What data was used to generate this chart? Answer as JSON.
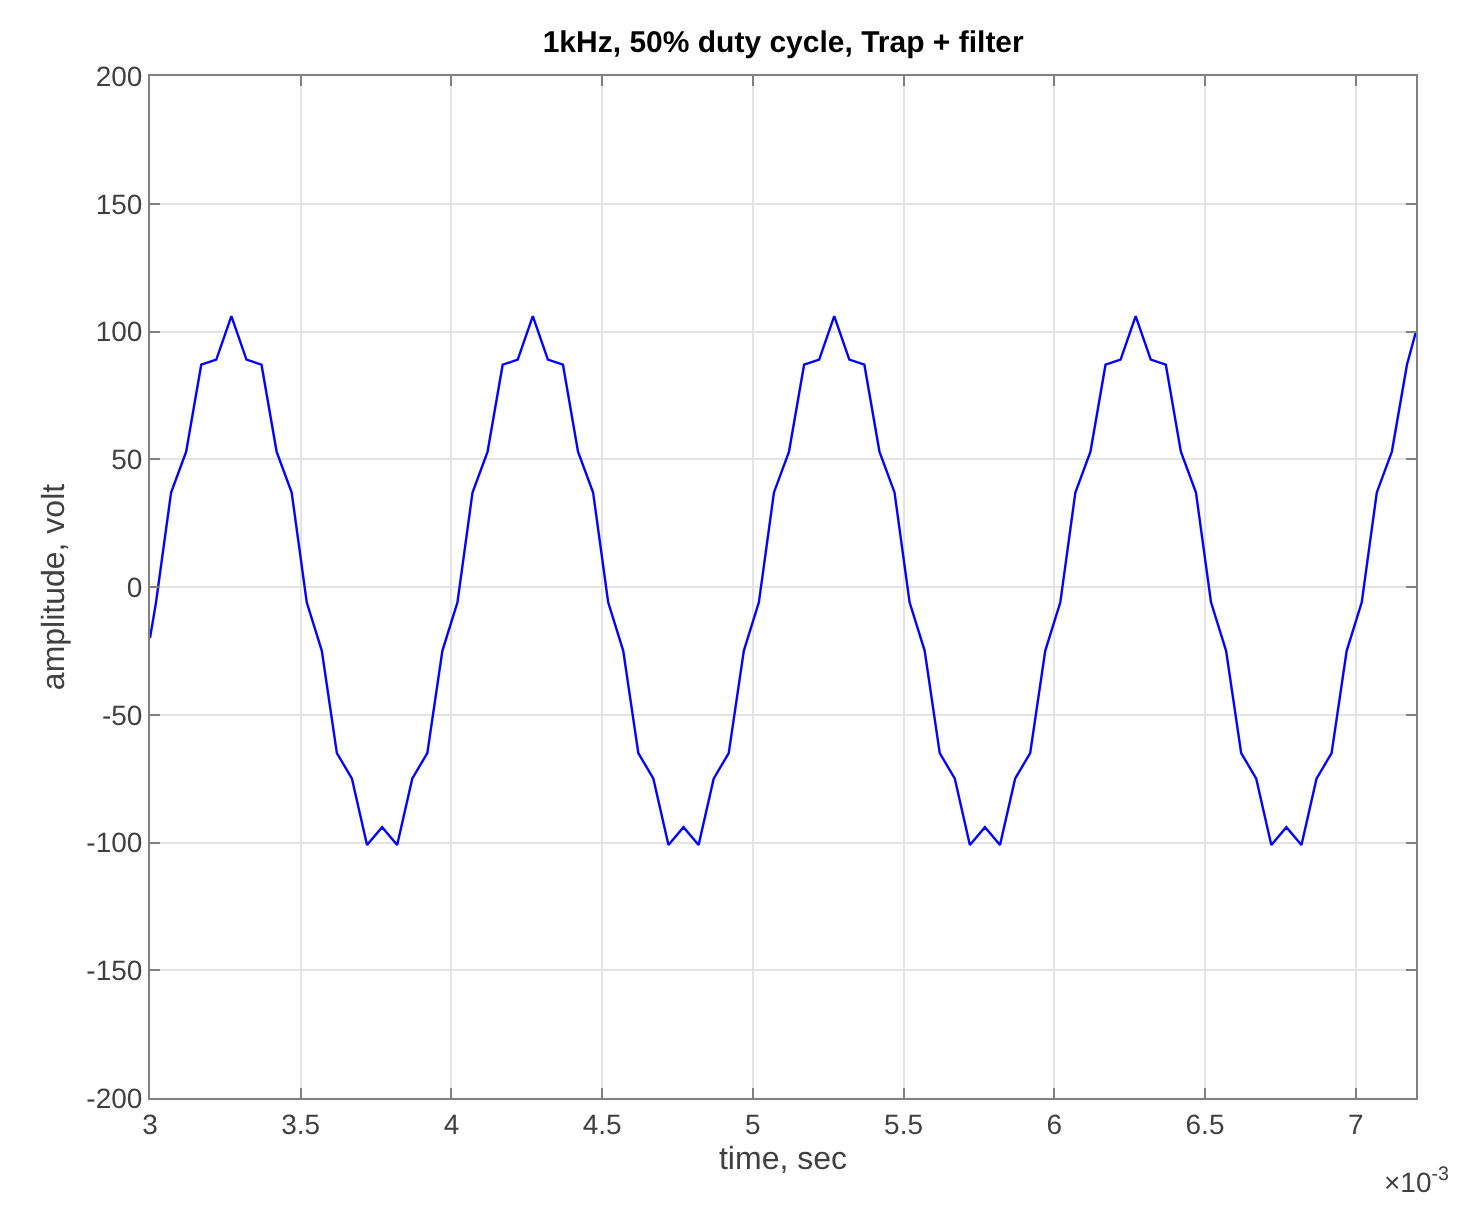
{
  "chart_data": {
    "type": "line",
    "title": "1kHz, 50% duty cycle, Trap + filter",
    "xlabel": "time, sec",
    "ylabel": "amplitude, volt",
    "annotations": [
      "×10$^{-3}$"
    ],
    "xlim": [
      3,
      7.2
    ],
    "xticks": [
      3,
      3.5,
      4,
      4.5,
      5,
      5.5,
      6,
      6.5,
      7
    ],
    "ylim": [
      -200,
      200
    ],
    "yticks": [
      -200,
      -150,
      -100,
      -50,
      0,
      50,
      100,
      150,
      200
    ],
    "grid": true,
    "marker": "none",
    "line_style": "solid",
    "x": [
      3,
      3.02,
      3.07,
      3.12,
      3.17,
      3.22,
      3.27,
      3.32,
      3.37,
      3.42,
      3.47,
      3.52,
      3.57,
      3.62,
      3.67,
      3.72,
      3.77,
      3.82,
      3.87,
      3.92,
      3.97,
      4.02,
      4.07,
      4.12,
      4.17,
      4.22,
      4.27,
      4.32,
      4.37,
      4.42,
      4.47,
      4.52,
      4.57,
      4.62,
      4.67,
      4.72,
      4.77,
      4.82,
      4.87,
      4.92,
      4.97,
      5.02,
      5.07,
      5.12,
      5.17,
      5.22,
      5.27,
      5.32,
      5.37,
      5.42,
      5.47,
      5.52,
      5.57,
      5.62,
      5.67,
      5.72,
      5.77,
      5.82,
      5.87,
      5.92,
      5.97,
      6.02,
      6.07,
      6.12,
      6.17,
      6.22,
      6.27,
      6.32,
      6.37,
      6.42,
      6.47,
      6.52,
      6.57,
      6.62,
      6.67,
      6.72,
      6.77,
      6.82,
      6.87,
      6.92,
      6.97,
      7.02,
      7.07,
      7.12,
      7.17,
      7.2
    ],
    "series": [
      {
        "color": "#0000ff",
        "values": [
          -20,
          -6,
          37,
          53,
          87,
          89,
          106,
          89,
          87,
          53,
          37,
          -6,
          -25,
          -65,
          -75,
          -101,
          -94,
          -101,
          -75,
          -65,
          -25,
          -6,
          37,
          53,
          87,
          89,
          106,
          89,
          87,
          53,
          37,
          -6,
          -25,
          -65,
          -75,
          -101,
          -94,
          -101,
          -75,
          -65,
          -25,
          -6,
          37,
          53,
          87,
          89,
          106,
          89,
          87,
          53,
          37,
          -6,
          -25,
          -65,
          -75,
          -101,
          -94,
          -101,
          -75,
          -65,
          -25,
          -6,
          37,
          53,
          87,
          89,
          106,
          89,
          87,
          53,
          37,
          -6,
          -25,
          -65,
          -75,
          -101,
          -94,
          -101,
          -75,
          -65,
          -25,
          -6,
          37,
          53,
          87,
          100
        ]
      }
    ]
  }
}
